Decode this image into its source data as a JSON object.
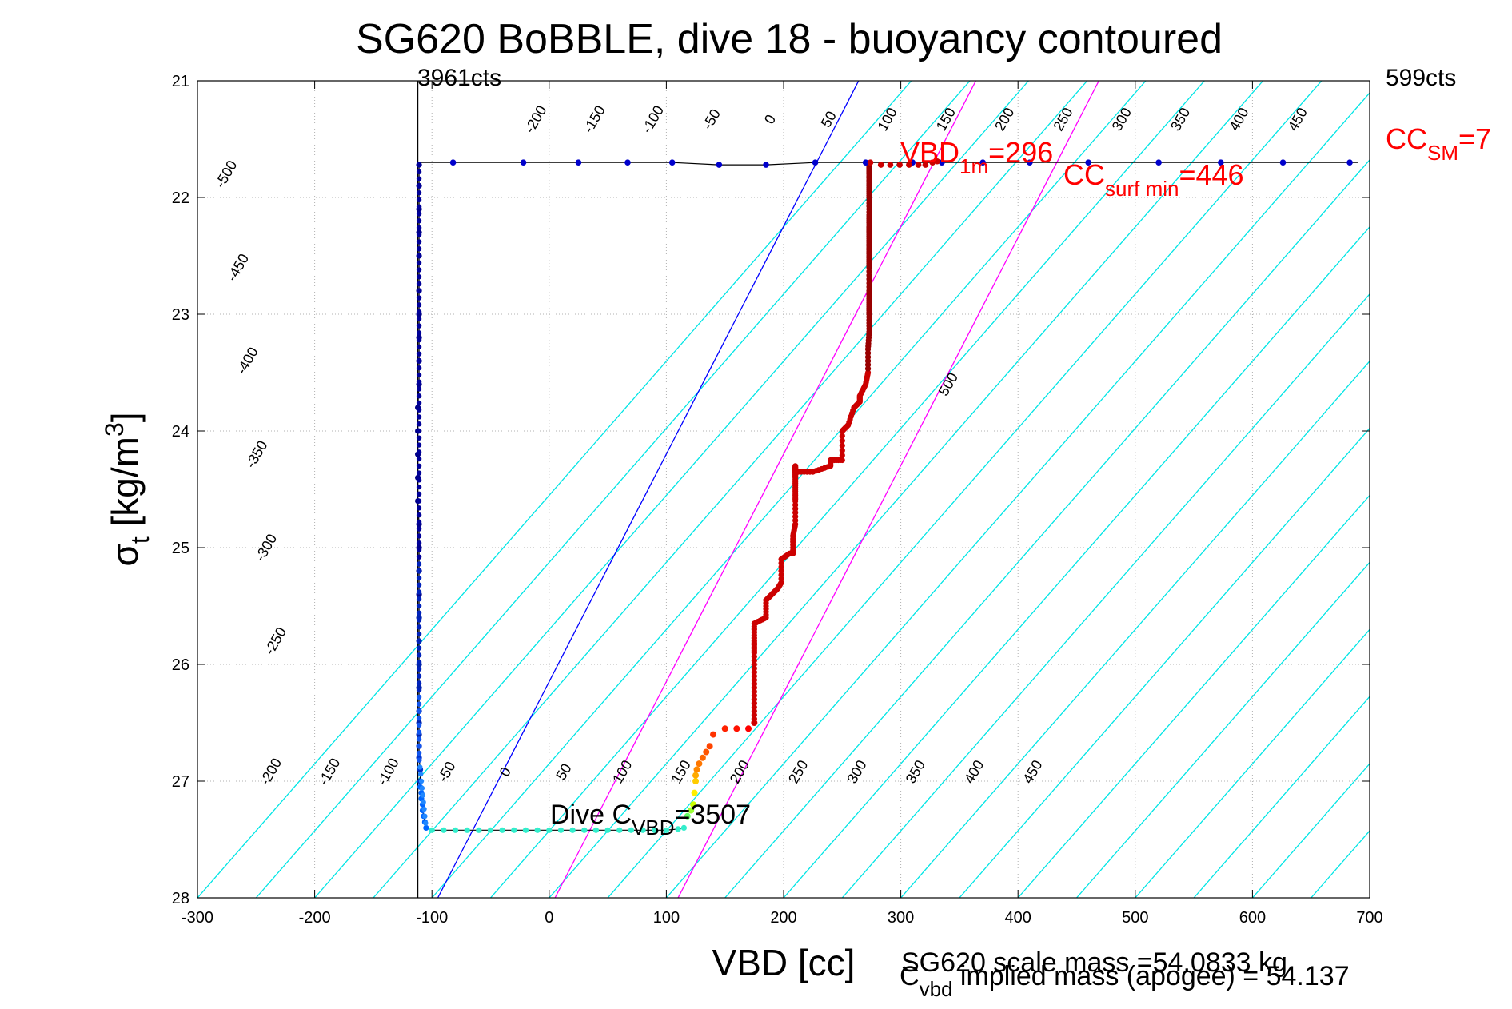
{
  "chart_data": {
    "type": "scatter",
    "title": "SG620 BoBBLE, dive 18 - buoyancy contoured",
    "xlabel": "VBD [cc]",
    "ylabel_main": "σ",
    "ylabel_sub": "t",
    "ylabel_rest": " [kg/m",
    "ylabel_sup": "3",
    "ylabel_close": "]",
    "xlim": [
      -300,
      700
    ],
    "ylim": [
      21,
      28
    ],
    "y_reversed": true,
    "grid": true,
    "xticks": [
      -300,
      -200,
      -100,
      0,
      100,
      200,
      300,
      400,
      500,
      600,
      700
    ],
    "yticks": [
      21,
      22,
      23,
      24,
      25,
      26,
      27,
      28
    ],
    "top_left_label": "3961cts",
    "top_right_label": "599cts",
    "annotations": {
      "vbd1m_main": "VBD",
      "vbd1m_sub": "1m",
      "vbd1m_val": "=296",
      "ccsurf_main": "CC",
      "ccsurf_sub": "surf min",
      "ccsurf_val": "=446",
      "ccsm_main": "CC",
      "ccsm_sub": "SM",
      "ccsm_val": "=7",
      "divec_main": "Dive C",
      "divec_sub": "VBD",
      "divec_val": "=3507",
      "scale_mass": "SG620 scale mass =54.0833 kg",
      "implied_main": "C",
      "implied_sub": "vbd",
      "implied_rest": " implied mass (apogee) = 54.137"
    },
    "vertical_lines": [
      {
        "x": -112,
        "color": "#000000"
      },
      {
        "x": 273,
        "color": "#000000"
      }
    ],
    "buoyancy_contours": {
      "color": "#00e5e5",
      "slope_vbd_per_sigma": 87,
      "intercepts_at_sigma_28": [
        -300,
        -250,
        -200,
        -150,
        -100,
        -50,
        0,
        50,
        100,
        150,
        200,
        250,
        300,
        350,
        400,
        450,
        500,
        550,
        600,
        650,
        700,
        750,
        800,
        850,
        900,
        950,
        1000,
        1050,
        1100,
        1150,
        1200
      ]
    },
    "contour_labels_upper": {
      "sigma": 21.35,
      "values": [
        "-200",
        "-150",
        "-100",
        "-50",
        "0",
        "50",
        "100",
        "150",
        "200",
        "250",
        "300",
        "350",
        "400",
        "450"
      ],
      "x": [
        -8,
        42,
        92,
        142,
        192,
        242,
        292,
        342,
        392,
        442,
        492,
        542,
        592,
        642
      ]
    },
    "contour_labels_left": [
      {
        "text": "-500",
        "x": -272,
        "y": 21.82
      },
      {
        "text": "-450",
        "x": -262,
        "y": 22.62
      },
      {
        "text": "-400",
        "x": -254,
        "y": 23.42
      },
      {
        "text": "-350",
        "x": -246,
        "y": 24.22
      },
      {
        "text": "-300",
        "x": -238,
        "y": 25.02
      },
      {
        "text": "-250",
        "x": -230,
        "y": 25.82
      },
      {
        "text": "500",
        "x": 344,
        "y": 23.62
      }
    ],
    "contour_labels_lower": {
      "sigma": 26.94,
      "values": [
        "-200",
        "-150",
        "-100",
        "-50",
        "0",
        "50",
        "100",
        "150",
        "200",
        "250",
        "300",
        "350",
        "400",
        "450"
      ],
      "x": [
        -234,
        -184,
        -134,
        -84,
        -34,
        16,
        66,
        116,
        166,
        216,
        266,
        316,
        366,
        416
      ]
    },
    "reference_lines": [
      {
        "color": "#0000ff",
        "points": [
          [
            -95,
            28
          ],
          [
            264,
            21
          ]
        ]
      },
      {
        "color": "#ff00ff",
        "points": [
          [
            5,
            28
          ],
          [
            364,
            21
          ]
        ]
      },
      {
        "color": "#ff00ff",
        "points": [
          [
            110,
            28
          ],
          [
            469,
            21
          ]
        ]
      }
    ],
    "surface_line": {
      "color": "#000000",
      "points": [
        [
          -112,
          21.7
        ],
        [
          -82,
          21.7
        ],
        [
          -22,
          21.7
        ],
        [
          25,
          21.7
        ],
        [
          67,
          21.7
        ],
        [
          105,
          21.7
        ],
        [
          145,
          21.72
        ],
        [
          185,
          21.72
        ],
        [
          227,
          21.7
        ],
        [
          270,
          21.7
        ],
        [
          310,
          21.7
        ],
        [
          370,
          21.7
        ],
        [
          440,
          21.7
        ],
        [
          520,
          21.7
        ],
        [
          570,
          21.7
        ],
        [
          630,
          21.7
        ],
        [
          690,
          21.7
        ]
      ]
    },
    "surface_points": {
      "color": "#0000cc",
      "x": [
        -82,
        -22,
        25,
        67,
        105,
        145,
        185,
        227,
        270,
        310,
        335,
        370,
        410,
        460,
        520,
        573,
        626,
        683
      ],
      "y": [
        21.7,
        21.7,
        21.7,
        21.7,
        21.7,
        21.72,
        21.72,
        21.7,
        21.7,
        21.7,
        21.7,
        21.7,
        21.7,
        21.7,
        21.7,
        21.7,
        21.7,
        21.7
      ]
    },
    "surface_red_points": {
      "color": "#cc0000",
      "x": [
        274,
        283,
        291,
        299,
        307,
        315,
        321,
        327,
        331
      ],
      "y": [
        21.7,
        21.72,
        21.72,
        21.72,
        21.72,
        21.72,
        21.72,
        21.7,
        21.69
      ]
    },
    "descent_profile": {
      "x": [
        -111,
        -111,
        -111,
        -111,
        -111,
        -111,
        -111,
        -111,
        -111,
        -111,
        -112,
        -112,
        -112,
        -112,
        -112,
        -111,
        -111,
        -111,
        -111,
        -111,
        -111,
        -111,
        -111,
        -111,
        -111,
        -111,
        -111,
        -111,
        -110,
        -110,
        -110,
        -109,
        -109,
        -108,
        -108,
        -107,
        -106,
        -105
      ],
      "y": [
        21.72,
        21.9,
        22.1,
        22.3,
        22.5,
        22.8,
        23.0,
        23.2,
        23.4,
        23.6,
        23.8,
        24.0,
        24.2,
        24.4,
        24.6,
        24.8,
        25.0,
        25.2,
        25.4,
        25.6,
        25.8,
        26.0,
        26.2,
        26.4,
        26.5,
        26.6,
        26.7,
        26.8,
        26.9,
        27.0,
        27.05,
        27.1,
        27.15,
        27.2,
        27.25,
        27.3,
        27.35,
        27.4
      ]
    },
    "bottom_points": {
      "color": "#33eecc",
      "x": [
        -100,
        -90,
        -80,
        -70,
        -60,
        -50,
        -40,
        -30,
        -20,
        -10,
        0,
        10,
        20,
        30,
        40,
        50,
        60,
        70,
        80,
        90,
        100,
        110,
        115
      ],
      "y": [
        27.42,
        27.42,
        27.42,
        27.42,
        27.42,
        27.42,
        27.42,
        27.42,
        27.42,
        27.42,
        27.42,
        27.42,
        27.42,
        27.42,
        27.42,
        27.42,
        27.42,
        27.42,
        27.42,
        27.42,
        27.42,
        27.41,
        27.4
      ]
    },
    "ascent_colored": {
      "x": [
        118,
        121,
        123,
        124,
        125,
        125,
        126,
        128,
        131,
        134,
        137,
        140,
        150,
        160,
        170,
        175
      ],
      "y": [
        27.3,
        27.25,
        27.2,
        27.1,
        27.0,
        26.95,
        26.9,
        26.85,
        26.8,
        26.75,
        26.7,
        26.6,
        26.55,
        26.55,
        26.55,
        26.5
      ],
      "colors": [
        "#66ff66",
        "#99ff33",
        "#ccff00",
        "#ffee00",
        "#ffcc00",
        "#ffaa00",
        "#ff8800",
        "#ff7700",
        "#ff6600",
        "#ff5500",
        "#ff4400",
        "#ff3300",
        "#ff2200",
        "#ff1100",
        "#ff0000",
        "#ee0000"
      ]
    },
    "ascent_profile": {
      "color": "#cc0000",
      "x": [
        175,
        175,
        175,
        175,
        175,
        175,
        185,
        185,
        190,
        195,
        198,
        198,
        205,
        208,
        208,
        210,
        210,
        210,
        210,
        210,
        210,
        210,
        225,
        240,
        240,
        250,
        250,
        255,
        260,
        265,
        265,
        270,
        272,
        272,
        273,
        273,
        273,
        273,
        273,
        273,
        273,
        273,
        273,
        273,
        273,
        273,
        273,
        273,
        273
      ],
      "y": [
        26.5,
        26.3,
        26.1,
        25.9,
        25.8,
        25.65,
        25.6,
        25.45,
        25.4,
        25.35,
        25.3,
        25.1,
        25.05,
        25.05,
        24.9,
        24.8,
        24.6,
        24.5,
        24.4,
        24.35,
        24.3,
        24.35,
        24.35,
        24.3,
        24.25,
        24.25,
        24.0,
        23.95,
        23.8,
        23.75,
        23.7,
        23.6,
        23.5,
        23.3,
        23.15,
        23.0,
        22.9,
        22.8,
        22.6,
        22.5,
        22.4,
        22.3,
        22.25,
        22.15,
        22.0,
        21.9,
        21.8,
        21.75,
        21.72
      ]
    }
  }
}
